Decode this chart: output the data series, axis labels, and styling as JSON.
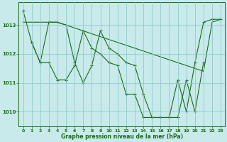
{
  "xlabel": "Graphe pression niveau de la mer (hPa)",
  "background_color": "#c8eaea",
  "grid_color": "#88c4c4",
  "line_color": "#1a6b1a",
  "xlim": [
    -0.5,
    23.5
  ],
  "ylim": [
    1009.5,
    1013.8
  ],
  "yticks": [
    1010,
    1011,
    1012,
    1013
  ],
  "xticks": [
    0,
    1,
    2,
    3,
    4,
    5,
    6,
    7,
    8,
    9,
    10,
    11,
    12,
    13,
    14,
    15,
    16,
    17,
    18,
    19,
    20,
    21,
    22,
    23
  ],
  "series1_x": [
    0,
    1,
    2,
    3,
    4,
    5,
    6,
    7,
    8,
    9,
    10,
    11,
    12,
    13,
    14,
    15,
    16,
    17,
    18,
    19,
    20,
    21,
    22,
    23
  ],
  "series1_y": [
    1013.5,
    1012.4,
    1011.7,
    1011.7,
    1011.1,
    1011.1,
    1011.6,
    1012.8,
    1012.2,
    1012.0,
    1011.7,
    1011.6,
    1010.6,
    1010.6,
    1009.8,
    1009.8,
    1009.8,
    1009.8,
    1011.1,
    1010.0,
    1011.7,
    1013.1,
    1013.2,
    1013.2
  ],
  "series2_x": [
    0,
    1,
    2,
    3,
    4,
    5,
    6,
    7,
    8,
    9,
    10,
    11,
    12,
    13,
    14,
    15,
    16,
    17,
    18,
    19,
    20,
    21,
    22,
    23
  ],
  "series2_y": [
    1013.1,
    1013.1,
    1013.1,
    1013.1,
    1013.1,
    1013.0,
    1012.9,
    1012.8,
    1012.7,
    1012.6,
    1012.5,
    1012.4,
    1012.3,
    1012.2,
    1012.1,
    1012.0,
    1011.9,
    1011.8,
    1011.7,
    1011.6,
    1011.5,
    1011.4,
    1013.1,
    1013.2
  ],
  "series3_x": [
    1,
    2,
    3,
    4,
    5,
    6,
    7,
    8,
    9,
    10,
    11,
    12,
    13,
    14,
    15,
    16,
    17,
    18,
    19,
    20,
    21
  ],
  "series3_y": [
    1012.4,
    1011.7,
    1013.1,
    1013.1,
    1013.0,
    1011.7,
    1011.0,
    1011.6,
    1012.8,
    1012.2,
    1012.0,
    1011.7,
    1011.6,
    1010.6,
    1009.8,
    1009.8,
    1009.8,
    1009.8,
    1011.1,
    1010.0,
    1011.7
  ]
}
